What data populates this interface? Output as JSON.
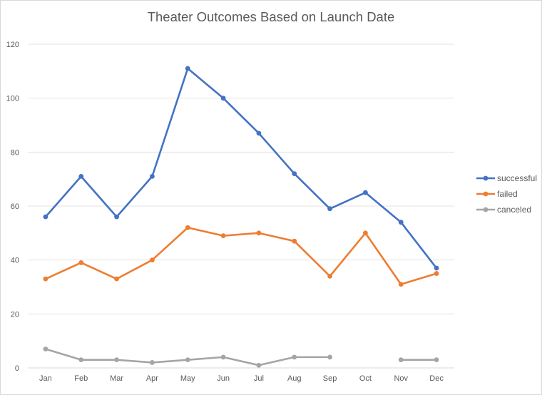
{
  "chart_data": {
    "type": "line",
    "title": "Theater Outcomes Based on Launch Date",
    "xlabel": "",
    "ylabel": "",
    "categories": [
      "Jan",
      "Feb",
      "Mar",
      "Apr",
      "May",
      "Jun",
      "Jul",
      "Aug",
      "Sep",
      "Oct",
      "Nov",
      "Dec"
    ],
    "ylim": [
      0,
      120
    ],
    "yticks": [
      0,
      20,
      40,
      60,
      80,
      100,
      120
    ],
    "grid": "horizontal",
    "legend_position": "right",
    "series": [
      {
        "name": "successful",
        "color": "#4472c4",
        "values": [
          56,
          71,
          56,
          71,
          111,
          100,
          87,
          72,
          59,
          65,
          54,
          37
        ]
      },
      {
        "name": "failed",
        "color": "#ed7d31",
        "values": [
          33,
          39,
          33,
          40,
          52,
          49,
          50,
          47,
          34,
          50,
          31,
          35
        ]
      },
      {
        "name": "canceled",
        "color": "#a5a5a5",
        "values": [
          7,
          3,
          3,
          2,
          3,
          4,
          1,
          4,
          4,
          null,
          3,
          3
        ]
      }
    ]
  }
}
